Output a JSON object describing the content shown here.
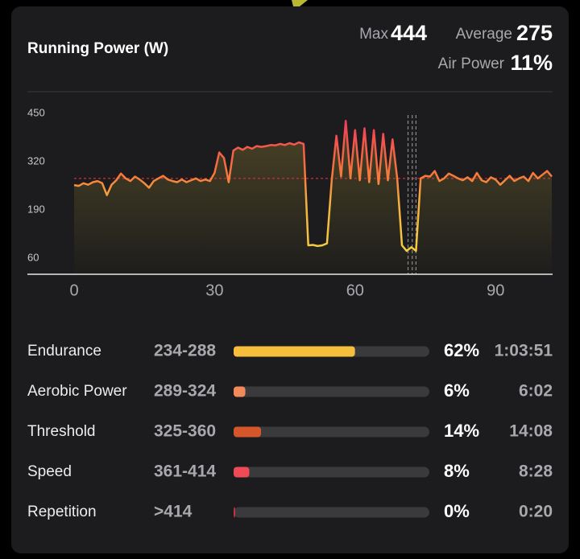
{
  "chart_data": {
    "type": "line",
    "title": "Running Power (W)",
    "max_label": "Max",
    "max": 444,
    "average_label": "Average",
    "average": 275,
    "air_power_label": "Air Power",
    "air_power": "11%",
    "x": [
      0,
      1,
      2,
      3,
      4,
      5,
      6,
      7,
      8,
      9,
      10,
      11,
      12,
      13,
      14,
      15,
      16,
      17,
      18,
      19,
      20,
      21,
      22,
      23,
      24,
      25,
      26,
      27,
      28,
      29,
      30,
      31,
      32,
      33,
      34,
      35,
      36,
      37,
      38,
      39,
      40,
      41,
      42,
      43,
      44,
      45,
      46,
      47,
      48,
      49,
      50,
      51,
      52,
      53,
      54,
      55,
      56,
      57,
      58,
      59,
      60,
      61,
      62,
      63,
      64,
      65,
      66,
      67,
      68,
      69,
      70,
      71,
      72,
      73,
      74,
      75,
      76,
      77,
      78,
      79,
      80,
      81,
      82,
      83,
      84,
      85,
      86,
      87,
      88,
      89,
      90,
      91,
      92,
      93,
      94,
      95,
      96,
      97,
      98,
      99,
      100,
      101,
      102
    ],
    "series": [
      {
        "values": [
          257,
          255,
          262,
          258,
          265,
          268,
          262,
          230,
          258,
          270,
          288,
          275,
          268,
          280,
          272,
          262,
          250,
          268,
          275,
          282,
          272,
          268,
          265,
          272,
          265,
          270,
          275,
          268,
          272,
          268,
          290,
          345,
          330,
          265,
          350,
          358,
          352,
          360,
          355,
          362,
          360,
          362,
          365,
          364,
          368,
          365,
          370,
          366,
          372,
          368,
          95,
          96,
          93,
          95,
          100,
          270,
          390,
          280,
          430,
          275,
          405,
          270,
          410,
          265,
          405,
          260,
          395,
          270,
          380,
          275,
          95,
          80,
          90,
          80,
          275,
          282,
          280,
          295,
          268,
          275,
          288,
          282,
          275,
          270,
          278,
          268,
          290,
          270,
          265,
          278,
          272,
          258,
          270,
          282,
          268,
          275,
          280,
          268,
          290,
          275,
          285,
          295,
          280
        ]
      }
    ],
    "markers": [
      71.3,
      72.2,
      73
    ],
    "xlim": [
      0,
      102
    ],
    "xticks": [
      0,
      30,
      60,
      90
    ],
    "ylim": [
      17,
      450
    ],
    "yticks": [
      450,
      320,
      190,
      60
    ],
    "zones": [
      {
        "name": "Endurance",
        "range": "234-288",
        "percent": 62,
        "percent_label": "62%",
        "time": "1:03:51",
        "color": "#f5be3c"
      },
      {
        "name": "Aerobic Power",
        "range": "289-324",
        "percent": 6,
        "percent_label": "6%",
        "time": "6:02",
        "color": "#f2895a"
      },
      {
        "name": "Threshold",
        "range": "325-360",
        "percent": 14,
        "percent_label": "14%",
        "time": "14:08",
        "color": "#d6562b"
      },
      {
        "name": "Speed",
        "range": "361-414",
        "percent": 8,
        "percent_label": "8%",
        "time": "8:28",
        "color": "#ef4a55"
      },
      {
        "name": "Repetition",
        "range": ">414",
        "percent": 0,
        "percent_label": "0%",
        "time": "0:20",
        "color": "#c8323f"
      }
    ]
  }
}
